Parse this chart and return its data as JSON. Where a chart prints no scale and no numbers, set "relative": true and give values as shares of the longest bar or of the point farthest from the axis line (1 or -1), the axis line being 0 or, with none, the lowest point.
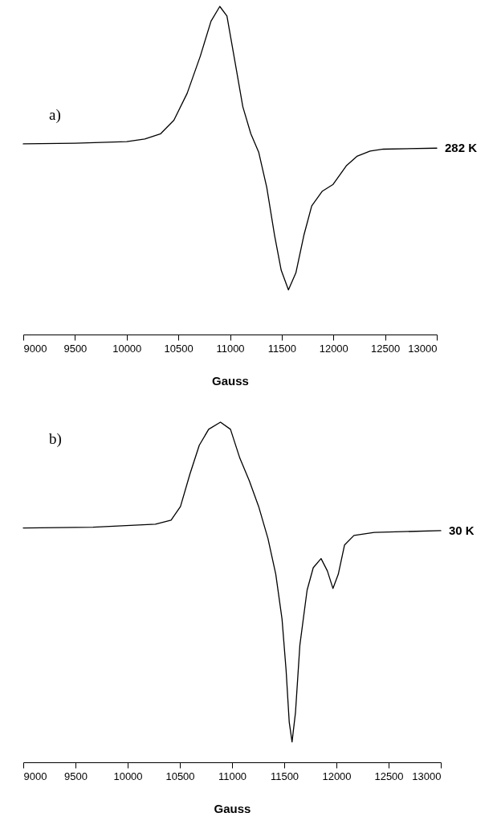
{
  "chart_data": [
    {
      "type": "line",
      "relative": true,
      "xlabel": "Gauss",
      "annotations": [
        "a)"
      ],
      "xlim": [
        9000,
        13000
      ],
      "xticks": [
        9000,
        9500,
        10000,
        10500,
        11000,
        11500,
        12000,
        12500,
        13000
      ],
      "x": [
        9000,
        9500,
        10000,
        10175,
        10329,
        10457,
        10585,
        10713,
        10816,
        10901,
        10970,
        11047,
        11124,
        11201,
        11278,
        11355,
        11431,
        11495,
        11565,
        11637,
        11714,
        11790,
        11893,
        11995,
        12124,
        12227,
        12355,
        12483,
        13000
      ],
      "series": [
        {
          "name": "282 K",
          "color": "#000000",
          "values": [
            0.581,
            0.583,
            0.588,
            0.596,
            0.612,
            0.653,
            0.735,
            0.849,
            0.955,
            1.0,
            0.971,
            0.833,
            0.694,
            0.612,
            0.555,
            0.449,
            0.302,
            0.196,
            0.136,
            0.188,
            0.302,
            0.392,
            0.437,
            0.457,
            0.514,
            0.543,
            0.559,
            0.565,
            0.568
          ]
        }
      ]
    },
    {
      "type": "line",
      "relative": true,
      "xlabel": "Gauss",
      "annotations": [
        "b)"
      ],
      "xlim": [
        9000,
        13000
      ],
      "xticks": [
        9000,
        9500,
        10000,
        10500,
        11000,
        11500,
        12000,
        12500,
        13000
      ],
      "x": [
        9000,
        9668,
        10266,
        10416,
        10506,
        10596,
        10686,
        10776,
        10889,
        10985,
        11075,
        11165,
        11255,
        11344,
        11419,
        11479,
        11518,
        11548,
        11575,
        11608,
        11650,
        11719,
        11778,
        11853,
        11913,
        11967,
        12018,
        12078,
        12168,
        12362,
        13000
      ],
      "series": [
        {
          "name": "30 K",
          "color": "#000000",
          "values": [
            0.689,
            0.691,
            0.7,
            0.712,
            0.752,
            0.847,
            0.932,
            0.979,
            1.0,
            0.979,
            0.894,
            0.828,
            0.752,
            0.658,
            0.553,
            0.421,
            0.27,
            0.118,
            0.06,
            0.147,
            0.345,
            0.506,
            0.572,
            0.599,
            0.563,
            0.511,
            0.553,
            0.639,
            0.667,
            0.676,
            0.681
          ]
        }
      ]
    }
  ]
}
